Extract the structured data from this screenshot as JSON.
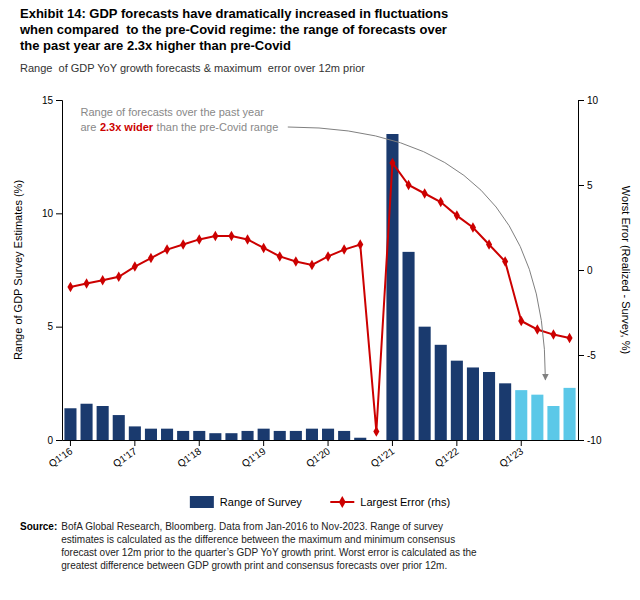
{
  "chart_data": {
    "type": "bar",
    "title": "Exhibit 14: GDP forecasts have dramatically increased in fluctuations\nwhen compared  to the pre-Covid regime: the range of forecasts over\nthe past year are 2.3x higher than pre-Covid",
    "subtitle": "Range  of GDP YoY growth forecasts & maximum  error over 12m prior",
    "source": {
      "label": "Source:",
      "text": "BofA Global Research, Bloomberg. Data from Jan-2016 to Nov-2023. Range of survey\nestimates is calculated as the difference between the maximum and minimum consensus\nforecast over 12m prior to the quarter’s GDP YoY growth print. Worst error is calculated as the\ngreatest difference between GDP growth print and consensus forecasts over prior 12m."
    },
    "categories": [
      "Q1'16",
      null,
      null,
      null,
      "Q1'17",
      null,
      null,
      null,
      "Q1'18",
      null,
      null,
      null,
      "Q1'19",
      null,
      null,
      null,
      "Q1'20",
      null,
      null,
      null,
      "Q1'21",
      null,
      null,
      null,
      "Q1'22",
      null,
      null,
      null,
      "Q1'23",
      null,
      null,
      null
    ],
    "ylabel": "Range of GDP Survey Estimates (%)",
    "y2label": "Worst Error (Realized - Survey, %)",
    "ylim": [
      0,
      15
    ],
    "yticks": [
      0,
      5,
      10,
      15
    ],
    "y2lim": [
      -10,
      10
    ],
    "y2ticks": [
      -10,
      -5,
      0,
      5,
      10
    ],
    "grid": false,
    "legend": "bottom",
    "series": [
      {
        "name": "Range of Survey",
        "type": "bar",
        "color": "#1a3a6e",
        "colors": [
          "#1a3a6e",
          "#1a3a6e",
          "#1a3a6e",
          "#1a3a6e",
          "#1a3a6e",
          "#1a3a6e",
          "#1a3a6e",
          "#1a3a6e",
          "#1a3a6e",
          "#1a3a6e",
          "#1a3a6e",
          "#1a3a6e",
          "#1a3a6e",
          "#1a3a6e",
          "#1a3a6e",
          "#1a3a6e",
          "#1a3a6e",
          "#1a3a6e",
          "#1a3a6e",
          "#1a3a6e",
          "#1a3a6e",
          "#1a3a6e",
          "#1a3a6e",
          "#1a3a6e",
          "#1a3a6e",
          "#1a3a6e",
          "#1a3a6e",
          "#1a3a6e",
          "#5bc8e8",
          "#5bc8e8",
          "#5bc8e8",
          "#5bc8e8"
        ],
        "values": [
          1.4,
          1.6,
          1.5,
          1.1,
          0.6,
          0.5,
          0.5,
          0.4,
          0.4,
          0.3,
          0.3,
          0.4,
          0.5,
          0.4,
          0.4,
          0.5,
          0.5,
          0.4,
          0.1,
          0.0,
          13.5,
          8.3,
          5.0,
          4.2,
          3.5,
          3.2,
          3.0,
          2.5,
          2.2,
          2.0,
          1.5,
          2.3
        ]
      },
      {
        "name": "Largest Error (rhs)",
        "type": "line",
        "axis": "y2",
        "color": "#cc0000",
        "marker": "diamond",
        "line_style": "solid",
        "values": [
          -1.0,
          -0.8,
          -0.6,
          -0.4,
          0.2,
          0.7,
          1.2,
          1.5,
          1.8,
          2.0,
          2.0,
          1.8,
          1.3,
          0.8,
          0.5,
          0.3,
          0.8,
          1.2,
          1.5,
          -9.5,
          6.3,
          5.0,
          4.5,
          4.0,
          3.2,
          2.5,
          1.5,
          0.5,
          -3.0,
          -3.5,
          -3.8,
          -4.0
        ]
      }
    ],
    "annotations": [
      {
        "text": "Range of forecasts over the past year",
        "color": "#888888"
      },
      {
        "text": "are",
        "color": "#888888"
      },
      {
        "text": "2.3x wider",
        "color": "#cc0000"
      },
      {
        "text": "than the pre-Covid range",
        "color": "#888888"
      }
    ]
  }
}
